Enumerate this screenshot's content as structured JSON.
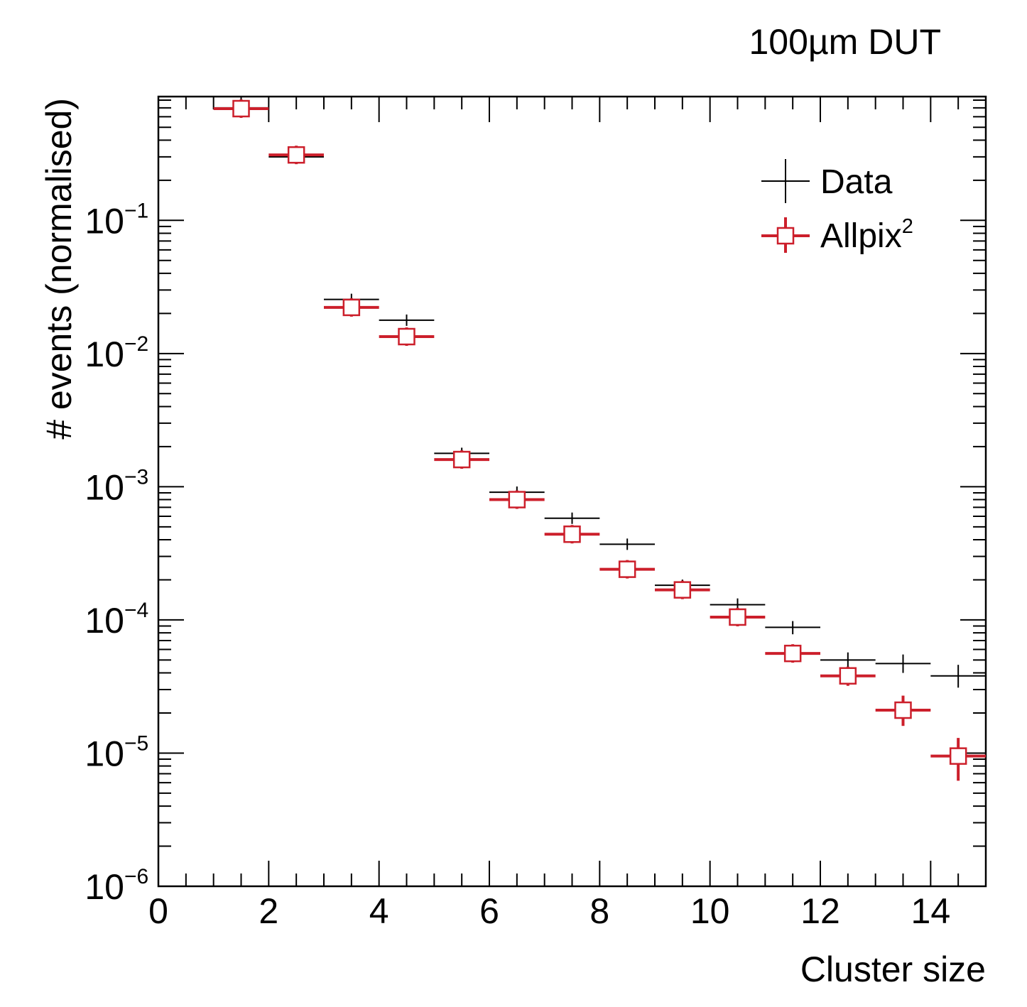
{
  "chart_data": {
    "type": "scatter",
    "title": "100µm DUT",
    "xlabel": "Cluster size",
    "ylabel": "# events (normalised)",
    "xlim": [
      0,
      15
    ],
    "ylim": [
      1e-06,
      0.85
    ],
    "x_scale": "linear",
    "y_scale": "log",
    "x_ticks": [
      "0",
      "2",
      "4",
      "6",
      "8",
      "10",
      "12",
      "14"
    ],
    "y_ticks": [
      {
        "base": "10",
        "exp": "−6",
        "value": 1e-06
      },
      {
        "base": "10",
        "exp": "−5",
        "value": 1e-05
      },
      {
        "base": "10",
        "exp": "−4",
        "value": 0.0001
      },
      {
        "base": "10",
        "exp": "−3",
        "value": 0.001
      },
      {
        "base": "10",
        "exp": "−2",
        "value": 0.01
      },
      {
        "base": "10",
        "exp": "−1",
        "value": 0.1
      }
    ],
    "legend_position": "top-right",
    "grid": false,
    "series": [
      {
        "name": "Data",
        "legend_label": "Data",
        "color": "#000000",
        "marker": "cross",
        "points": [
          {
            "x": 1.5,
            "y": 0.7,
            "ylo": 0.7,
            "yhi": 0.7
          },
          {
            "x": 2.5,
            "y": 0.3,
            "ylo": 0.3,
            "yhi": 0.3
          },
          {
            "x": 3.5,
            "y": 0.0255,
            "ylo": 0.0255,
            "yhi": 0.0255
          },
          {
            "x": 4.5,
            "y": 0.0178,
            "ylo": 0.0178,
            "yhi": 0.0178
          },
          {
            "x": 5.5,
            "y": 0.00178,
            "ylo": 0.0017,
            "yhi": 0.00186
          },
          {
            "x": 6.5,
            "y": 0.00091,
            "ylo": 0.00087,
            "yhi": 0.00095
          },
          {
            "x": 7.5,
            "y": 0.00058,
            "ylo": 0.00055,
            "yhi": 0.00061
          },
          {
            "x": 8.5,
            "y": 0.00037,
            "ylo": 0.00035,
            "yhi": 0.00039
          },
          {
            "x": 9.5,
            "y": 0.000182,
            "ylo": 0.000165,
            "yhi": 0.0002
          },
          {
            "x": 10.5,
            "y": 0.00013,
            "ylo": 0.000117,
            "yhi": 0.000145
          },
          {
            "x": 11.5,
            "y": 8.8e-05,
            "ylo": 7.8e-05,
            "yhi": 9.8e-05
          },
          {
            "x": 12.5,
            "y": 5e-05,
            "ylo": 4.3e-05,
            "yhi": 5.7e-05
          },
          {
            "x": 13.5,
            "y": 4.7e-05,
            "ylo": 4e-05,
            "yhi": 5.5e-05
          },
          {
            "x": 14.5,
            "y": 3.8e-05,
            "ylo": 3.1e-05,
            "yhi": 4.6e-05
          }
        ]
      },
      {
        "name": "Allpix²",
        "legend_label": "Allpix",
        "legend_sup": "2",
        "color": "#cc1f2b",
        "marker": "open-square",
        "points": [
          {
            "x": 1.5,
            "y": 0.69,
            "ylo": 0.69,
            "yhi": 0.69
          },
          {
            "x": 2.5,
            "y": 0.31,
            "ylo": 0.31,
            "yhi": 0.31
          },
          {
            "x": 3.5,
            "y": 0.0222,
            "ylo": 0.0222,
            "yhi": 0.0222
          },
          {
            "x": 4.5,
            "y": 0.0134,
            "ylo": 0.0134,
            "yhi": 0.0134
          },
          {
            "x": 5.5,
            "y": 0.0016,
            "ylo": 0.00155,
            "yhi": 0.00165
          },
          {
            "x": 6.5,
            "y": 0.0008,
            "ylo": 0.00077,
            "yhi": 0.00083
          },
          {
            "x": 7.5,
            "y": 0.00044,
            "ylo": 0.00042,
            "yhi": 0.00046
          },
          {
            "x": 8.5,
            "y": 0.00024,
            "ylo": 0.000225,
            "yhi": 0.000255
          },
          {
            "x": 9.5,
            "y": 0.000168,
            "ylo": 0.000155,
            "yhi": 0.000181
          },
          {
            "x": 10.5,
            "y": 0.000105,
            "ylo": 9.6e-05,
            "yhi": 0.000114
          },
          {
            "x": 11.5,
            "y": 5.6e-05,
            "ylo": 5e-05,
            "yhi": 6.2e-05
          },
          {
            "x": 12.5,
            "y": 3.8e-05,
            "ylo": 3.2e-05,
            "yhi": 4.4e-05
          },
          {
            "x": 13.5,
            "y": 2.1e-05,
            "ylo": 1.6e-05,
            "yhi": 2.7e-05
          },
          {
            "x": 14.5,
            "y": 9.5e-06,
            "ylo": 6.2e-06,
            "yhi": 1.3e-05
          }
        ]
      }
    ]
  }
}
